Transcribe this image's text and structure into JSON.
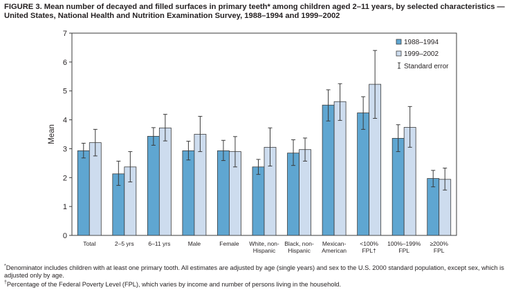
{
  "title": "FIGURE 3. Mean number of decayed and filled surfaces in primary teeth* among children aged 2–11 years, by selected characteristics — United States, National Health and Nutrition Examination Survey, 1988–1994 and 1999–2002",
  "footnotes": [
    {
      "mark": "*",
      "text": "Denominator includes children with at least one primary tooth. All estimates are adjusted by age (single years) and sex to the U.S. 2000 standard population, except sex, which is adjusted only by age."
    },
    {
      "mark": "†",
      "text": "Percentage of the Federal Poverty Level (FPL), which varies by income and number of persons living in the household."
    }
  ],
  "chart_data": {
    "type": "bar",
    "ylabel": "Mean",
    "xlabel": "",
    "ylim": [
      0,
      7
    ],
    "yticks": [
      "0",
      "1",
      "2",
      "3",
      "4",
      "5",
      "6",
      "7"
    ],
    "grid": false,
    "legend_position": "top-right",
    "categories": [
      [
        "Total"
      ],
      [
        "2–5 yrs"
      ],
      [
        "6–11 yrs"
      ],
      [
        "Male"
      ],
      [
        "Female"
      ],
      [
        "White, non-",
        "Hispanic"
      ],
      [
        "Black, non-",
        "Hispanic"
      ],
      [
        "Mexican-",
        "American"
      ],
      [
        "<100%",
        "FPL†"
      ],
      [
        "100%–199%",
        "FPL"
      ],
      [
        "≥200%",
        "FPL"
      ]
    ],
    "series": [
      {
        "name": "1988–1994",
        "color": "#5fa6d1",
        "values": [
          2.93,
          2.13,
          3.43,
          2.93,
          2.93,
          2.37,
          2.85,
          4.51,
          4.24,
          3.36,
          1.97
        ],
        "error_low": [
          2.68,
          1.73,
          3.12,
          2.61,
          2.59,
          2.11,
          2.42,
          3.96,
          3.67,
          2.9,
          1.68
        ],
        "error_high": [
          3.19,
          2.57,
          3.73,
          3.26,
          3.29,
          2.63,
          3.31,
          5.04,
          4.8,
          3.83,
          2.25
        ]
      },
      {
        "name": "1999–2002",
        "color": "#cddcee",
        "values": [
          3.21,
          2.37,
          3.72,
          3.5,
          2.9,
          3.05,
          2.97,
          4.63,
          5.23,
          3.74,
          1.94
        ],
        "error_low": [
          2.75,
          1.85,
          3.27,
          2.9,
          2.37,
          2.4,
          2.57,
          3.98,
          4.05,
          3.05,
          1.57
        ],
        "error_high": [
          3.67,
          2.9,
          4.19,
          4.12,
          3.42,
          3.72,
          3.37,
          5.25,
          6.4,
          4.46,
          2.33
        ]
      }
    ],
    "error_legend": "Standard error"
  }
}
